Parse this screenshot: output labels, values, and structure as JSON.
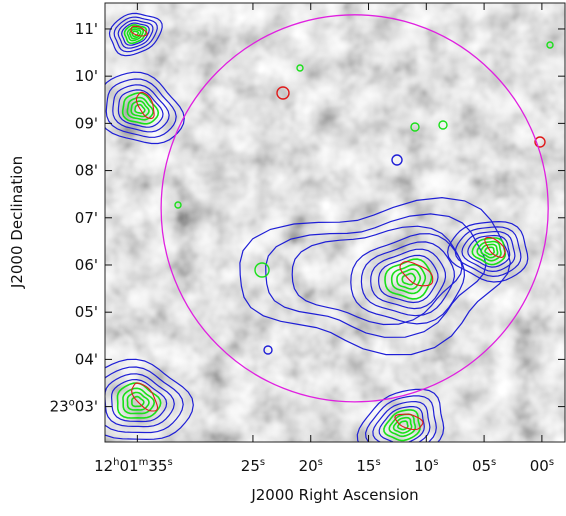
{
  "chart_data": {
    "type": "image",
    "description_colors": {
      "background": "grayscale",
      "contour_1": "#1f1fd6",
      "contour_2": "#19e019",
      "contour_3": "#e01919",
      "circle": "#e020e0"
    },
    "xlabel": "J2000 Right Ascension",
    "ylabel": "J2000 Declination",
    "x_ticks": [
      {
        "ra_sec": 35,
        "parts": [
          {
            "t": "12",
            "sup": false
          },
          {
            "t": "h",
            "sup": true
          },
          {
            "t": "01",
            "sup": false
          },
          {
            "t": "m",
            "sup": true
          },
          {
            "t": "35",
            "sup": false
          },
          {
            "t": "s",
            "sup": true
          }
        ]
      },
      {
        "ra_sec": 25,
        "parts": [
          {
            "t": "25",
            "sup": false
          },
          {
            "t": "s",
            "sup": true
          }
        ]
      },
      {
        "ra_sec": 20,
        "parts": [
          {
            "t": "20",
            "sup": false
          },
          {
            "t": "s",
            "sup": true
          }
        ]
      },
      {
        "ra_sec": 15,
        "parts": [
          {
            "t": "15",
            "sup": false
          },
          {
            "t": "s",
            "sup": true
          }
        ]
      },
      {
        "ra_sec": 10,
        "parts": [
          {
            "t": "10",
            "sup": false
          },
          {
            "t": "s",
            "sup": true
          }
        ]
      },
      {
        "ra_sec": 5,
        "parts": [
          {
            "t": "05",
            "sup": false
          },
          {
            "t": "s",
            "sup": true
          }
        ]
      },
      {
        "ra_sec": 0,
        "parts": [
          {
            "t": "00",
            "sup": false
          },
          {
            "t": "s",
            "sup": true
          }
        ]
      }
    ],
    "y_ticks": [
      {
        "dec_arcmin": 11,
        "parts": [
          {
            "t": "11'",
            "sup": false
          }
        ]
      },
      {
        "dec_arcmin": 10,
        "parts": [
          {
            "t": "10'",
            "sup": false
          }
        ]
      },
      {
        "dec_arcmin": 9,
        "parts": [
          {
            "t": "09'",
            "sup": false
          }
        ]
      },
      {
        "dec_arcmin": 8,
        "parts": [
          {
            "t": "08'",
            "sup": false
          }
        ]
      },
      {
        "dec_arcmin": 7,
        "parts": [
          {
            "t": "07'",
            "sup": false
          }
        ]
      },
      {
        "dec_arcmin": 6,
        "parts": [
          {
            "t": "06'",
            "sup": false
          }
        ]
      },
      {
        "dec_arcmin": 5,
        "parts": [
          {
            "t": "05'",
            "sup": false
          }
        ]
      },
      {
        "dec_arcmin": 4,
        "parts": [
          {
            "t": "04'",
            "sup": false
          }
        ]
      },
      {
        "dec_arcmin": 3,
        "parts": [
          {
            "t": "23",
            "sup": false
          },
          {
            "t": "o",
            "sup": true
          },
          {
            "t": "03'",
            "sup": false
          }
        ]
      }
    ],
    "xlim_ra_sec": [
      37.8,
      -2.0
    ],
    "ylim_dec_arcmin": [
      2.25,
      11.55
    ],
    "circle": {
      "center_ra_sec": 16.2,
      "center_dec_arcmin": 7.2,
      "radius_arcmin": 4.1,
      "color": "#e020e0"
    },
    "sources": [
      {
        "name": "top-left-compact",
        "ra_sec": 35.2,
        "dec_arcmin": 10.9,
        "color": "#19e019"
      },
      {
        "name": "upper-left",
        "ra_sec": 34.8,
        "dec_arcmin": 9.3,
        "color": "#19e019"
      },
      {
        "name": "central",
        "ra_sec": 11.5,
        "dec_arcmin": 5.7,
        "color": "#19e019"
      },
      {
        "name": "right",
        "ra_sec": 4.5,
        "dec_arcmin": 6.3,
        "color": "#19e019"
      },
      {
        "name": "lower-left",
        "ra_sec": 35.0,
        "dec_arcmin": 3.1,
        "color": "#19e019"
      },
      {
        "name": "bottom-center",
        "ra_sec": 12.0,
        "dec_arcmin": 2.6,
        "color": "#19e019"
      }
    ]
  }
}
